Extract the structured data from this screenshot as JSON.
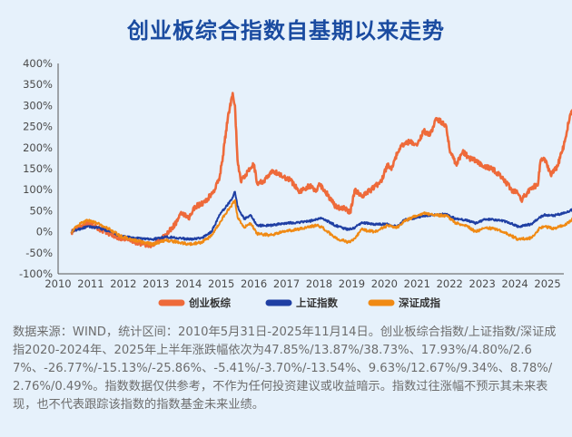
{
  "title": "创业板综合指数自基期以来走势",
  "note": "数据来源：WIND，统计区间：2010年5月31日-2025年11月14日。创业板综合指数/上证指数/深证成指2020-2024年、2025年上半年涨跌幅依次为47.85%/13.87%/38.73%、17.93%/4.80%/2.67%、-26.77%/-15.13%/-25.86%、-5.41%/-3.70%/-13.54%、9.63%/12.67%/9.34%、8.78%/2.76%/0.49%。指数数据仅供参考，不作为任何投资建议或收益暗示。指数过往涨幅不预示其未来表现，也不代表跟踪该指数的指数基金未来业绩。",
  "colors": {
    "title": "#1A4BA0",
    "cyb": "#EE6A3A",
    "sh": "#1F3FA3",
    "sz": "#F08A14",
    "background": "#E6F1FB"
  },
  "chart_data": {
    "type": "line",
    "ylim": [
      -100,
      400
    ],
    "xlim": [
      2010,
      2025.5
    ],
    "yticks": [
      "400%",
      "350%",
      "300%",
      "250%",
      "200%",
      "150%",
      "100%",
      "50%",
      "0%",
      "-50%",
      "-100%"
    ],
    "xticks": [
      "2010",
      "2011",
      "2012",
      "2013",
      "2014",
      "2015",
      "2016",
      "2017",
      "2018",
      "2019",
      "2020",
      "2021",
      "2022",
      "2023",
      "2024",
      "2025"
    ],
    "grid": false,
    "legend_position": "bottom",
    "series": [
      {
        "name": "创业板综",
        "color": "#EE6A3A",
        "x": [
          2010.41,
          2010.6,
          2010.9,
          2011.0,
          2011.3,
          2011.6,
          2011.9,
          2012.1,
          2012.4,
          2012.7,
          2012.95,
          2013.2,
          2013.4,
          2013.6,
          2013.8,
          2014.0,
          2014.2,
          2014.5,
          2014.8,
          2014.95,
          2015.05,
          2015.2,
          2015.35,
          2015.42,
          2015.5,
          2015.6,
          2015.75,
          2015.9,
          2016.0,
          2016.1,
          2016.3,
          2016.6,
          2016.9,
          2017.1,
          2017.4,
          2017.7,
          2017.9,
          2018.0,
          2018.2,
          2018.5,
          2018.8,
          2018.95,
          2019.1,
          2019.3,
          2019.6,
          2019.9,
          2020.1,
          2020.2,
          2020.5,
          2020.8,
          2021.0,
          2021.2,
          2021.4,
          2021.6,
          2021.9,
          2022.0,
          2022.2,
          2022.4,
          2022.6,
          2022.9,
          2023.0,
          2023.3,
          2023.6,
          2023.9,
          2024.1,
          2024.2,
          2024.5,
          2024.7,
          2024.78,
          2024.9,
          2025.1,
          2025.3,
          2025.5,
          2025.7,
          2025.87
        ],
        "y": [
          0,
          10,
          18,
          20,
          5,
          -5,
          -15,
          -18,
          -25,
          -30,
          -32,
          -15,
          0,
          20,
          45,
          30,
          60,
          70,
          100,
          130,
          180,
          270,
          330,
          300,
          170,
          120,
          135,
          150,
          160,
          115,
          120,
          145,
          130,
          125,
          95,
          110,
          95,
          115,
          95,
          60,
          55,
          45,
          100,
          85,
          100,
          120,
          160,
          150,
          205,
          215,
          205,
          240,
          230,
          270,
          250,
          195,
          160,
          190,
          175,
          165,
          155,
          150,
          130,
          100,
          90,
          75,
          105,
          110,
          165,
          175,
          135,
          155,
          205,
          280,
          290
        ]
      },
      {
        "name": "上证指数",
        "color": "#1F3FA3",
        "x": [
          2010.41,
          2010.6,
          2010.9,
          2011.2,
          2011.6,
          2011.9,
          2012.3,
          2012.9,
          2013.3,
          2013.7,
          2014.0,
          2014.4,
          2014.7,
          2014.95,
          2015.1,
          2015.3,
          2015.42,
          2015.5,
          2015.7,
          2015.9,
          2016.1,
          2016.5,
          2016.9,
          2017.3,
          2017.7,
          2017.95,
          2018.1,
          2018.5,
          2018.9,
          2019.1,
          2019.3,
          2019.7,
          2020.1,
          2020.4,
          2020.6,
          2020.9,
          2021.2,
          2021.5,
          2021.9,
          2022.2,
          2022.5,
          2022.8,
          2023.1,
          2023.5,
          2023.9,
          2024.1,
          2024.5,
          2024.78,
          2024.9,
          2025.2,
          2025.5,
          2025.87
        ],
        "y": [
          0,
          5,
          12,
          10,
          0,
          -10,
          -15,
          -18,
          -12,
          -15,
          -18,
          -15,
          0,
          40,
          55,
          75,
          95,
          60,
          30,
          40,
          15,
          15,
          20,
          22,
          25,
          30,
          32,
          15,
          5,
          10,
          22,
          18,
          18,
          12,
          28,
          32,
          38,
          40,
          42,
          30,
          28,
          20,
          30,
          28,
          20,
          12,
          18,
          35,
          40,
          38,
          45,
          55
        ]
      },
      {
        "name": "深证成指",
        "color": "#F08A14",
        "x": [
          2010.41,
          2010.6,
          2010.9,
          2011.2,
          2011.6,
          2011.9,
          2012.3,
          2012.9,
          2013.3,
          2013.7,
          2014.0,
          2014.4,
          2014.7,
          2014.95,
          2015.1,
          2015.3,
          2015.42,
          2015.5,
          2015.7,
          2015.9,
          2016.1,
          2016.5,
          2016.9,
          2017.3,
          2017.7,
          2017.95,
          2018.1,
          2018.5,
          2018.9,
          2019.1,
          2019.3,
          2019.7,
          2020.1,
          2020.4,
          2020.6,
          2020.9,
          2021.2,
          2021.5,
          2021.9,
          2022.2,
          2022.5,
          2022.8,
          2023.1,
          2023.5,
          2023.9,
          2024.1,
          2024.5,
          2024.78,
          2024.9,
          2025.2,
          2025.5,
          2025.87
        ],
        "y": [
          0,
          15,
          28,
          20,
          5,
          -10,
          -20,
          -30,
          -20,
          -25,
          -30,
          -25,
          -10,
          20,
          40,
          60,
          75,
          35,
          10,
          20,
          -5,
          -8,
          0,
          5,
          12,
          15,
          10,
          -15,
          -25,
          -15,
          5,
          0,
          15,
          10,
          25,
          35,
          45,
          40,
          38,
          20,
          15,
          0,
          10,
          5,
          -10,
          -18,
          -15,
          10,
          12,
          8,
          15,
          35
        ]
      }
    ]
  }
}
